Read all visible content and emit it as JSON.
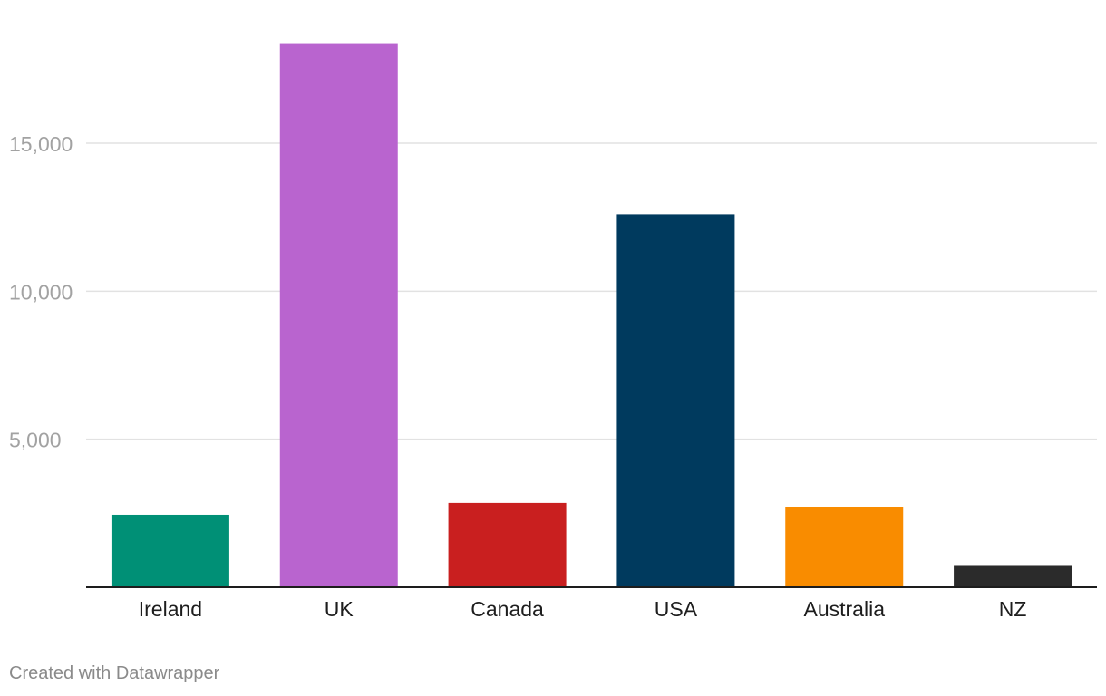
{
  "chart_data": {
    "type": "bar",
    "categories": [
      "Ireland",
      "UK",
      "Canada",
      "USA",
      "Australia",
      "NZ"
    ],
    "values": [
      2450,
      18350,
      2850,
      12600,
      2700,
      720
    ],
    "colors": [
      "#009076",
      "#b964cf",
      "#c91f1f",
      "#003a5e",
      "#f98c00",
      "#2b2b2b"
    ],
    "yticks": [
      5000,
      10000,
      15000
    ],
    "ytick_labels": [
      "5,000",
      "10,000",
      "15,000"
    ],
    "ylim": [
      0,
      19000
    ],
    "grid": true,
    "title": "",
    "xlabel": "",
    "ylabel": ""
  },
  "footer": {
    "credit": "Created with Datawrapper"
  }
}
